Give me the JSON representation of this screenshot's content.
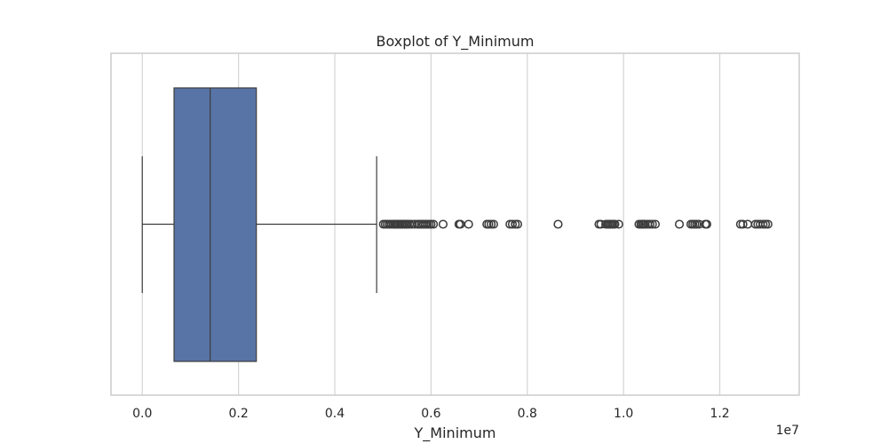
{
  "chart_data": {
    "type": "boxplot",
    "title": "Boxplot of Y_Minimum",
    "xlabel": "Y_Minimum",
    "ylabel": "",
    "axis_offset_label": "1e7",
    "xlim": [
      -0.065,
      1.365
    ],
    "tick_values": [
      0.0,
      0.2,
      0.4,
      0.6,
      0.8,
      1.0,
      1.2
    ],
    "tick_labels": [
      "0.0",
      "0.2",
      "0.4",
      "0.6",
      "0.8",
      "1.0",
      "1.2"
    ],
    "grid": true,
    "box": {
      "whisker_low": 0.0,
      "q1": 0.066,
      "median": 0.141,
      "q3": 0.237,
      "whisker_high": 0.487
    },
    "outliers": [
      0.501,
      0.505,
      0.509,
      0.513,
      0.517,
      0.521,
      0.524,
      0.527,
      0.53,
      0.533,
      0.536,
      0.539,
      0.542,
      0.545,
      0.548,
      0.551,
      0.555,
      0.56,
      0.566,
      0.572,
      0.576,
      0.58,
      0.584,
      0.588,
      0.592,
      0.596,
      0.6,
      0.605,
      0.625,
      0.658,
      0.661,
      0.678,
      0.716,
      0.72,
      0.725,
      0.73,
      0.764,
      0.769,
      0.775,
      0.78,
      0.864,
      0.949,
      0.953,
      0.963,
      0.967,
      0.97,
      0.973,
      0.976,
      0.979,
      0.982,
      0.99,
      1.032,
      1.036,
      1.039,
      1.042,
      1.045,
      1.05,
      1.055,
      1.06,
      1.066,
      1.116,
      1.14,
      1.144,
      1.148,
      1.152,
      1.157,
      1.17,
      1.173,
      1.243,
      1.248,
      1.258,
      1.274,
      1.279,
      1.284,
      1.29,
      1.295,
      1.3
    ],
    "colors": {
      "box_fill": "#5874a6",
      "line": "#3d3d3d",
      "grid": "#d4d4d4",
      "frame": "#cccccc",
      "outlier_edge": "#3d3d3d"
    }
  }
}
